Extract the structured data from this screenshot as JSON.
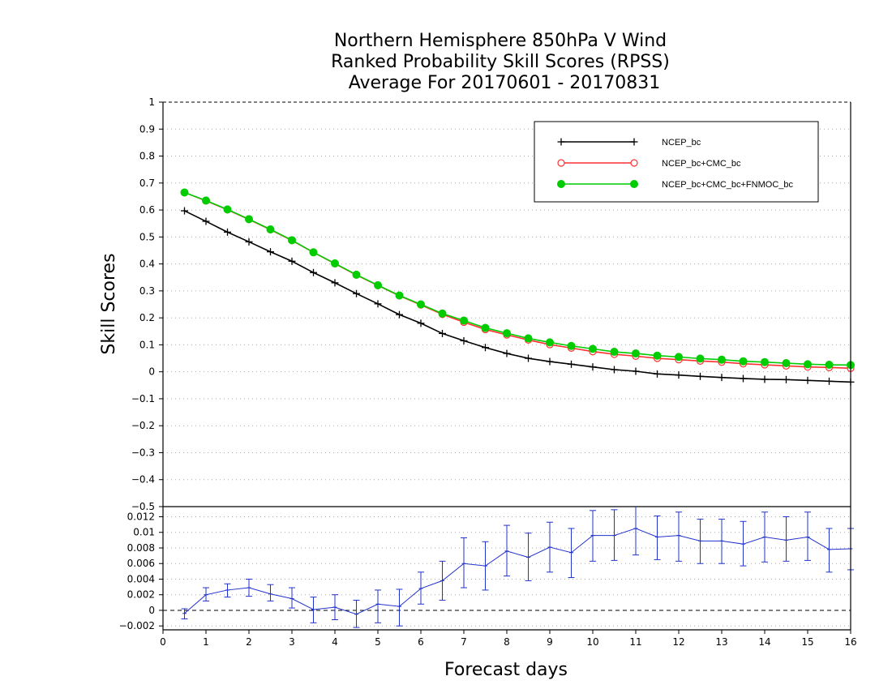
{
  "title_lines": [
    "Northern Hemisphere 850hPa V Wind",
    "Ranked Probability Skill Scores (RPSS)",
    "Average For 20170601 - 20170831"
  ],
  "colors": {
    "NCEP_bc": "#000000",
    "NCEP_bc+CMC_bc": "#ff3030",
    "NCEP_bc+CMC_bc+FNMOC_bc": "#00cc00",
    "difference": "#2233cc",
    "grid": "#aaaaaa"
  },
  "chart_data": [
    {
      "type": "line",
      "ylabel": "Skill Scores",
      "xlim": [
        0,
        16
      ],
      "ylim": [
        -0.5,
        1
      ],
      "yticks": [
        1,
        0.9,
        0.8,
        0.7,
        0.6,
        0.5,
        0.4,
        0.3,
        0.2,
        0.1,
        0,
        -0.1,
        -0.2,
        -0.3,
        -0.4,
        -0.5
      ],
      "ytick_labels": [
        "1",
        "0.9",
        "0.8",
        "0.7",
        "0.6",
        "0.5",
        "0.4",
        "0.3",
        "0.2",
        "0.1",
        "0",
        "−0.1",
        "−0.2",
        "−0.3",
        "−0.4",
        "−0.5"
      ],
      "grid": true,
      "legend_position": "top-right",
      "x": [
        0.5,
        1,
        1.5,
        2,
        2.5,
        3,
        3.5,
        4,
        4.5,
        5,
        5.5,
        6,
        6.5,
        7,
        7.5,
        8,
        8.5,
        9,
        9.5,
        10,
        10.5,
        11,
        11.5,
        12,
        12.5,
        13,
        13.5,
        14,
        14.5,
        15,
        15.5,
        16
      ],
      "series": [
        {
          "name": "NCEP_bc",
          "marker": "plus",
          "values": [
            0.597,
            0.558,
            0.518,
            0.482,
            0.445,
            0.41,
            0.368,
            0.33,
            0.29,
            0.252,
            0.212,
            0.18,
            0.142,
            0.115,
            0.09,
            0.068,
            0.05,
            0.038,
            0.028,
            0.018,
            0.008,
            0.002,
            -0.008,
            -0.012,
            -0.017,
            -0.021,
            -0.025,
            -0.028,
            -0.029,
            -0.032,
            -0.035,
            -0.038
          ]
        },
        {
          "name": "NCEP_bc+CMC_bc",
          "marker": "open-circle",
          "values": [
            0.665,
            0.634,
            0.601,
            0.565,
            0.527,
            0.487,
            0.443,
            0.401,
            0.359,
            0.32,
            0.282,
            0.248,
            0.213,
            0.184,
            0.157,
            0.137,
            0.118,
            0.101,
            0.088,
            0.075,
            0.065,
            0.058,
            0.05,
            0.045,
            0.04,
            0.036,
            0.03,
            0.026,
            0.022,
            0.018,
            0.016,
            0.013
          ]
        },
        {
          "name": "NCEP_bc+CMC_bc+FNMOC_bc",
          "marker": "filled-circle",
          "values": [
            0.665,
            0.635,
            0.602,
            0.566,
            0.528,
            0.488,
            0.443,
            0.402,
            0.36,
            0.321,
            0.283,
            0.25,
            0.216,
            0.19,
            0.163,
            0.143,
            0.124,
            0.109,
            0.096,
            0.085,
            0.074,
            0.068,
            0.06,
            0.055,
            0.049,
            0.045,
            0.039,
            0.036,
            0.032,
            0.028,
            0.026,
            0.025
          ]
        }
      ]
    },
    {
      "type": "line",
      "xlabel": "Forecast days",
      "xlim": [
        0,
        16
      ],
      "xticks": [
        0,
        1,
        2,
        3,
        4,
        5,
        6,
        7,
        8,
        9,
        10,
        11,
        12,
        13,
        14,
        15,
        16
      ],
      "ylim": [
        -0.0025,
        0.0133
      ],
      "yticks": [
        0.012,
        0.01,
        0.008,
        0.006,
        0.004,
        0.002,
        0,
        -0.002
      ],
      "ytick_labels": [
        "0.012",
        "0.01",
        "0.008",
        "0.006",
        "0.004",
        "0.002",
        "0",
        "−0.002"
      ],
      "grid": true,
      "x": [
        0.5,
        1,
        1.5,
        2,
        2.5,
        3,
        3.5,
        4,
        4.5,
        5,
        5.5,
        6,
        6.5,
        7,
        7.5,
        8,
        8.5,
        9,
        9.5,
        10,
        10.5,
        11,
        11.5,
        12,
        12.5,
        13,
        13.5,
        14,
        14.5,
        15,
        15.5,
        16
      ],
      "series": [
        {
          "name": "",
          "values": [
            -0.0004,
            0.002,
            0.0026,
            0.0029,
            0.0021,
            0.0015,
            0.0001,
            0.0004,
            -0.0005,
            0.0008,
            0.0005,
            0.0028,
            0.0038,
            0.006,
            0.0057,
            0.0076,
            0.0068,
            0.0081,
            0.0074,
            0.0096,
            0.0096,
            0.0105,
            0.0094,
            0.0096,
            0.0089,
            0.0089,
            0.0085,
            0.0094,
            0.009,
            0.0094,
            0.0078,
            0.0079
          ],
          "error_low": [
            -0.0011,
            0.0012,
            0.0017,
            0.0018,
            0.0012,
            0.0003,
            -0.0016,
            -0.0012,
            -0.0022,
            -0.0016,
            -0.002,
            0.0008,
            0.0013,
            0.0029,
            0.0026,
            0.0044,
            0.0038,
            0.0049,
            0.0042,
            0.0063,
            0.0064,
            0.0071,
            0.0065,
            0.0063,
            0.006,
            0.006,
            0.0057,
            0.0062,
            0.0063,
            0.0064,
            0.0049,
            0.0052
          ],
          "error_high": [
            0.0002,
            0.0029,
            0.0034,
            0.004,
            0.0033,
            0.0029,
            0.0017,
            0.002,
            0.0013,
            0.0026,
            0.0027,
            0.0049,
            0.0063,
            0.0093,
            0.0088,
            0.0109,
            0.0099,
            0.0113,
            0.0105,
            0.0128,
            0.0129,
            0.0136,
            0.0121,
            0.0126,
            0.0117,
            0.0117,
            0.0114,
            0.0126,
            0.012,
            0.0126,
            0.0105,
            0.0105
          ]
        }
      ]
    }
  ]
}
